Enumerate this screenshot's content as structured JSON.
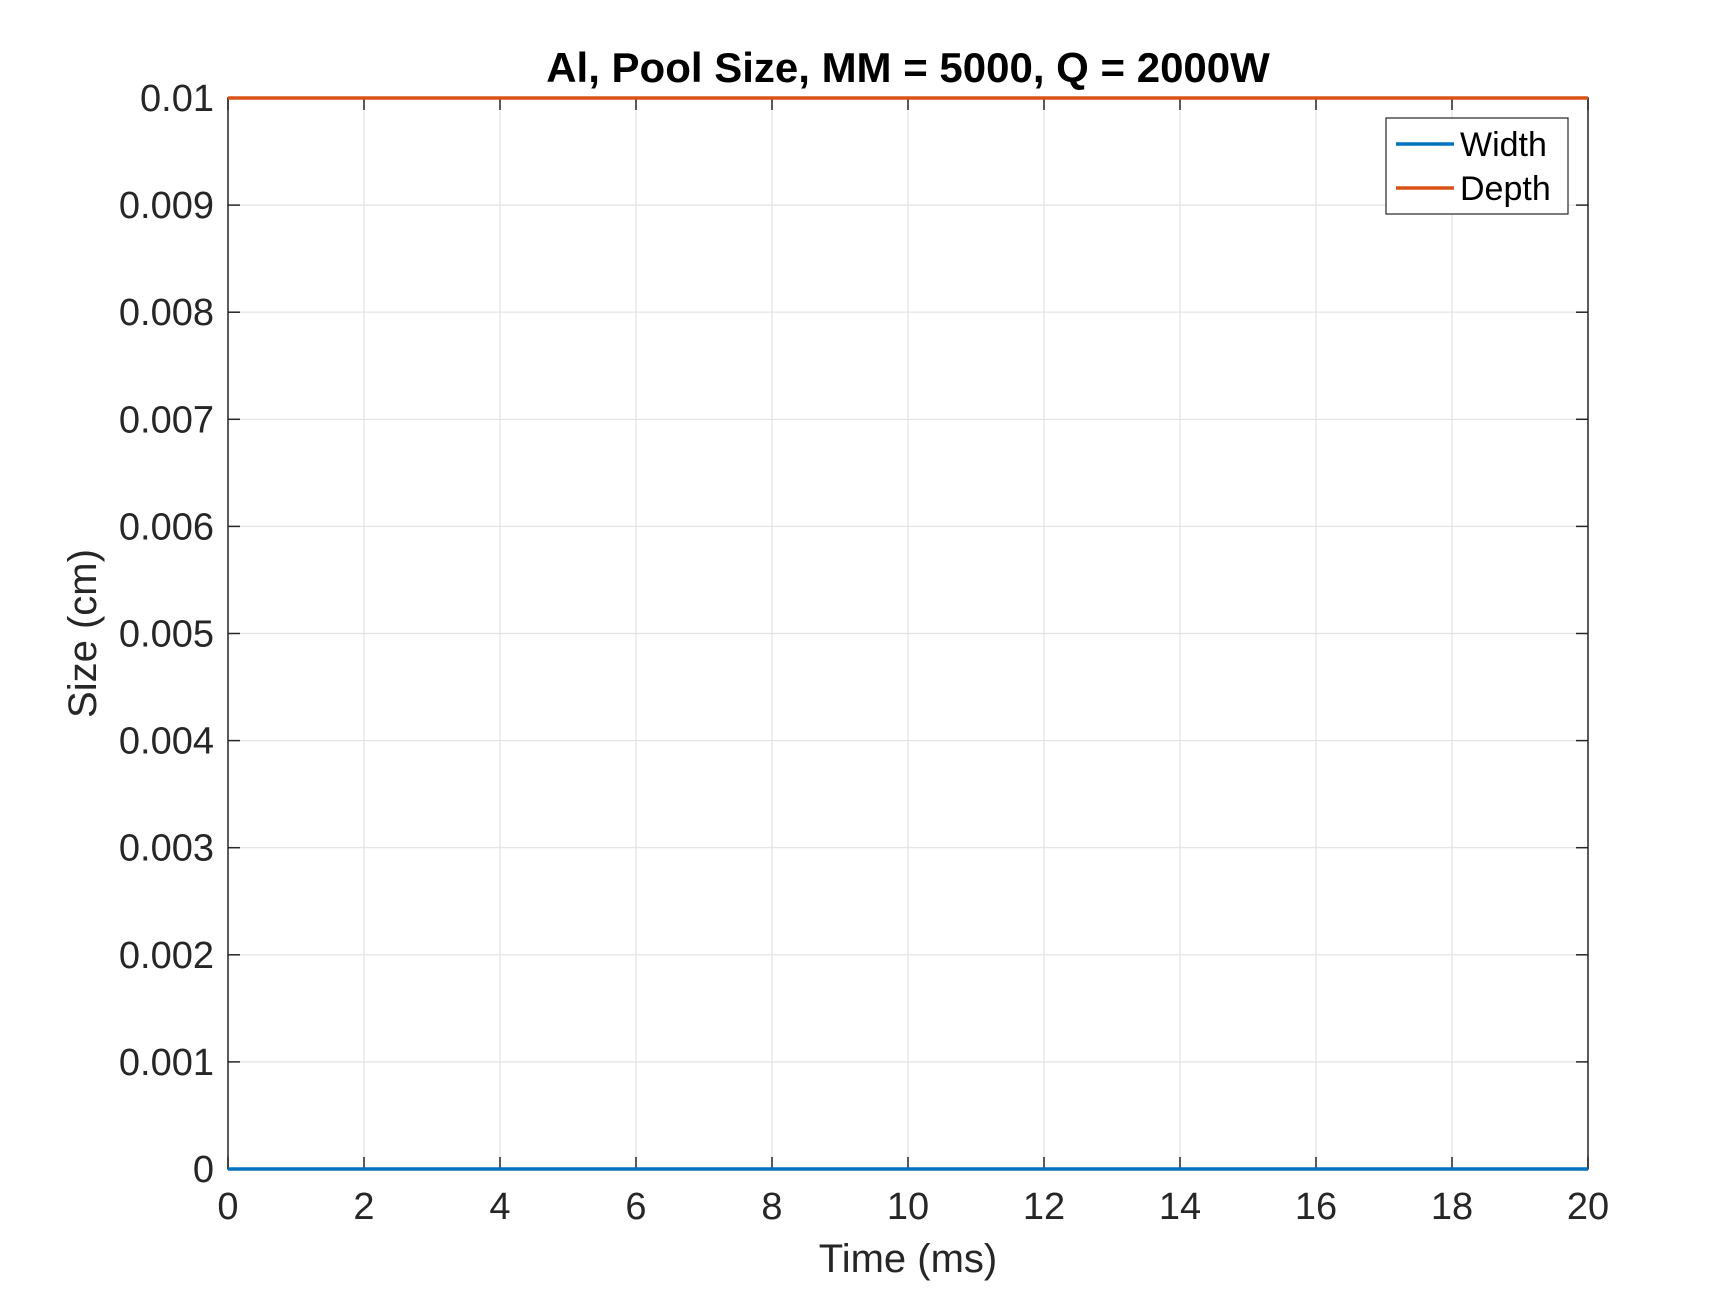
{
  "chart_data": {
    "type": "line",
    "title": "Al, Pool Size, MM = 5000, Q = 2000W",
    "xlabel": "Time (ms)",
    "ylabel": "Size (cm)",
    "xlim": [
      0,
      20
    ],
    "ylim": [
      0,
      0.01
    ],
    "xticks": [
      0,
      2,
      4,
      6,
      8,
      10,
      12,
      14,
      16,
      18,
      20
    ],
    "xtick_labels": [
      "0",
      "2",
      "4",
      "6",
      "8",
      "10",
      "12",
      "14",
      "16",
      "18",
      "20"
    ],
    "yticks": [
      0,
      0.001,
      0.002,
      0.003,
      0.004,
      0.005,
      0.006,
      0.007,
      0.008,
      0.009,
      0.01
    ],
    "ytick_labels": [
      "0",
      "0.001",
      "0.002",
      "0.003",
      "0.004",
      "0.005",
      "0.006",
      "0.007",
      "0.008",
      "0.009",
      "0.01"
    ],
    "grid": true,
    "legend_position": "top-right",
    "series": [
      {
        "name": "Width",
        "color": "#0072BD",
        "x": [
          0,
          20
        ],
        "y": [
          0,
          0
        ]
      },
      {
        "name": "Depth",
        "color": "#D95319",
        "x": [
          0,
          20
        ],
        "y": [
          0.01,
          0.01
        ]
      }
    ]
  }
}
